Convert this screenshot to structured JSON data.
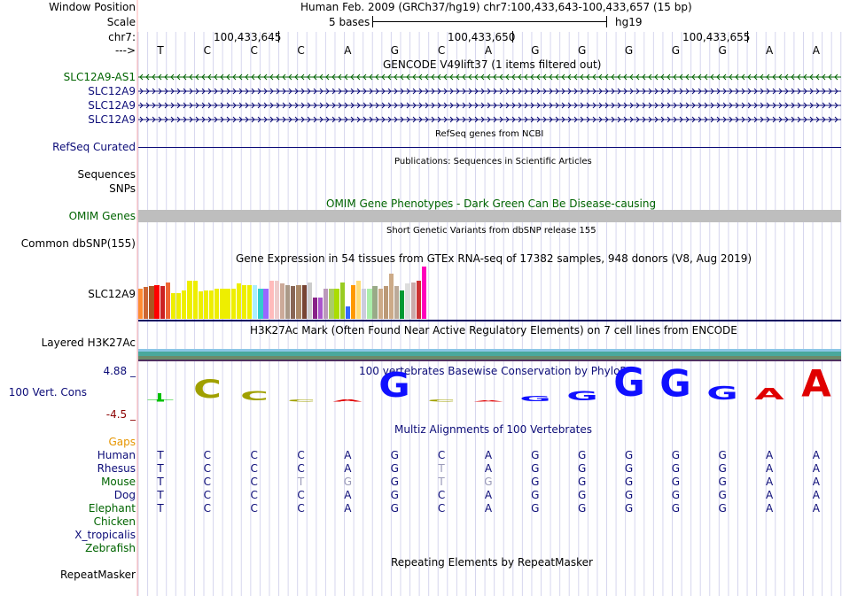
{
  "header": {
    "window_position_label": "Window Position",
    "window_position_text": "Human Feb. 2009 (GRCh37/hg19)   chr7:100,433,643-100,433,657 (15 bp)",
    "scale_label": "Scale",
    "scale_text": "5 bases",
    "assembly": "hg19",
    "chrom_label": "chr7:",
    "coord_ticks": [
      "100,433,645",
      "100,433,650",
      "100,433,655"
    ],
    "strand_label": "--->"
  },
  "bases": [
    "T",
    "C",
    "C",
    "C",
    "A",
    "G",
    "C",
    "A",
    "G",
    "G",
    "G",
    "G",
    "G",
    "A",
    "A"
  ],
  "gencode": {
    "title": "GENCODE V49lift37 (1 items filtered out)",
    "tracks": [
      {
        "name": "SLC12A9-AS1",
        "strand": "-",
        "color": "#006400"
      },
      {
        "name": "SLC12A9",
        "strand": "+",
        "color": "#0c0c78"
      },
      {
        "name": "SLC12A9",
        "strand": "+",
        "color": "#0c0c78"
      },
      {
        "name": "SLC12A9",
        "strand": "+",
        "color": "#0c0c78"
      }
    ]
  },
  "refseq": {
    "title": "RefSeq genes from NCBI",
    "label": "RefSeq Curated",
    "color": "#0c0c78"
  },
  "publications": {
    "title": "Publications: Sequences in Scientific Articles",
    "labels": [
      "Sequences",
      "SNPs"
    ]
  },
  "omim": {
    "title": "OMIM Gene Phenotypes - Dark Green Can Be Disease-causing",
    "label": "OMIM Genes",
    "color": "#006400",
    "bar_color": "#bebebe"
  },
  "dbsnp": {
    "title": "Short Genetic Variants from dbSNP release 155",
    "label": "Common dbSNP(155)"
  },
  "gtex": {
    "title": "Gene Expression in 54 tissues from GTEx RNA-seq of 17382 samples, 948 donors (V8, Aug 2019)",
    "gene": "SLC12A9",
    "bars": [
      {
        "v": 0.56,
        "c": "#FF8C32"
      },
      {
        "v": 0.6,
        "c": "#CC6633"
      },
      {
        "v": 0.62,
        "c": "#AA5522"
      },
      {
        "v": 0.64,
        "c": "#FF0000"
      },
      {
        "v": 0.62,
        "c": "#CC2222"
      },
      {
        "v": 0.69,
        "c": "#EE6633"
      },
      {
        "v": 0.49,
        "c": "#EEEE00"
      },
      {
        "v": 0.49,
        "c": "#EEEE00"
      },
      {
        "v": 0.53,
        "c": "#EEEE00"
      },
      {
        "v": 0.71,
        "c": "#EEEE00"
      },
      {
        "v": 0.71,
        "c": "#EEEE00"
      },
      {
        "v": 0.51,
        "c": "#EEEE00"
      },
      {
        "v": 0.53,
        "c": "#EEEE00"
      },
      {
        "v": 0.53,
        "c": "#EEEE00"
      },
      {
        "v": 0.56,
        "c": "#EEEE00"
      },
      {
        "v": 0.56,
        "c": "#EEEE00"
      },
      {
        "v": 0.56,
        "c": "#EEEE00"
      },
      {
        "v": 0.56,
        "c": "#EEEE00"
      },
      {
        "v": 0.66,
        "c": "#EEEE00"
      },
      {
        "v": 0.64,
        "c": "#EEEE00"
      },
      {
        "v": 0.64,
        "c": "#EEEE00"
      },
      {
        "v": 0.64,
        "c": "#AAEEFF"
      },
      {
        "v": 0.56,
        "c": "#33CCCC"
      },
      {
        "v": 0.56,
        "c": "#9966FF"
      },
      {
        "v": 0.71,
        "c": "#FFBBBB"
      },
      {
        "v": 0.71,
        "c": "#EECCCC"
      },
      {
        "v": 0.66,
        "c": "#CCAA99"
      },
      {
        "v": 0.64,
        "c": "#AA9988"
      },
      {
        "v": 0.62,
        "c": "#886655"
      },
      {
        "v": 0.64,
        "c": "#AA8866"
      },
      {
        "v": 0.64,
        "c": "#774433"
      },
      {
        "v": 0.69,
        "c": "#CCCCCC"
      },
      {
        "v": 0.4,
        "c": "#882288"
      },
      {
        "v": 0.4,
        "c": "#AA55CC"
      },
      {
        "v": 0.56,
        "c": "#BB99BB"
      },
      {
        "v": 0.56,
        "c": "#AACC66"
      },
      {
        "v": 0.56,
        "c": "#AADD00"
      },
      {
        "v": 0.69,
        "c": "#99CC22"
      },
      {
        "v": 0.24,
        "c": "#3366FF"
      },
      {
        "v": 0.64,
        "c": "#FF9900"
      },
      {
        "v": 0.71,
        "c": "#FFDD77"
      },
      {
        "v": 0.56,
        "c": "#CCCCDD"
      },
      {
        "v": 0.56,
        "c": "#AAEEAA"
      },
      {
        "v": 0.62,
        "c": "#99AA88"
      },
      {
        "v": 0.56,
        "c": "#CCAA88"
      },
      {
        "v": 0.62,
        "c": "#BB9977"
      },
      {
        "v": 0.85,
        "c": "#CCAA88"
      },
      {
        "v": 0.62,
        "c": "#BBAA99"
      },
      {
        "v": 0.53,
        "c": "#009933"
      },
      {
        "v": 0.67,
        "c": "#DDDDDD"
      },
      {
        "v": 0.69,
        "c": "#CCAAAA"
      },
      {
        "v": 0.71,
        "c": "#CC3333"
      },
      {
        "v": 0.98,
        "c": "#FF00BB"
      }
    ]
  },
  "h3k27ac": {
    "title": "H3K27Ac Mark (Often Found Near Active Regulatory Elements) on 7 cell lines from ENCODE",
    "label": "Layered H3K27Ac"
  },
  "phylop": {
    "title": "100 vertebrates Basewise Conservation by PhyloP",
    "label": "100 Vert. Cons",
    "max": "4.88 _",
    "min": "-4.5 _",
    "scores": [
      {
        "base": "T",
        "v": 0.1,
        "c": "#00c000"
      },
      {
        "base": "C",
        "v": 0.9,
        "c": "#a0a000"
      },
      {
        "base": "C",
        "v": 0.45,
        "c": "#a0a000"
      },
      {
        "base": "C",
        "v": 0.1,
        "c": "#a0a000"
      },
      {
        "base": "A",
        "v": 0.1,
        "c": "#e00000"
      },
      {
        "base": "G",
        "v": 1.2,
        "c": "#1010ff"
      },
      {
        "base": "C",
        "v": 0.1,
        "c": "#a0a000"
      },
      {
        "base": "A",
        "v": 0.05,
        "c": "#e00000"
      },
      {
        "base": "G",
        "v": 0.25,
        "c": "#1010ff"
      },
      {
        "base": "G",
        "v": 0.45,
        "c": "#1010ff"
      },
      {
        "base": "G",
        "v": 1.4,
        "c": "#1010ff"
      },
      {
        "base": "G",
        "v": 1.3,
        "c": "#1010ff"
      },
      {
        "base": "G",
        "v": 0.65,
        "c": "#1010ff"
      },
      {
        "base": "A",
        "v": 0.55,
        "c": "#e00000"
      },
      {
        "base": "A",
        "v": 1.3,
        "c": "#e00000"
      }
    ]
  },
  "multiz": {
    "title": "Multiz Alignments of 100 Vertebrates",
    "gaps_label": "Gaps",
    "species": [
      {
        "name": "Human",
        "color": "#0c0c78",
        "seq": [
          "T",
          "C",
          "C",
          "C",
          "A",
          "G",
          "C",
          "A",
          "G",
          "G",
          "G",
          "G",
          "G",
          "A",
          "A"
        ],
        "light": []
      },
      {
        "name": "Rhesus",
        "color": "#0c0c78",
        "seq": [
          "T",
          "C",
          "C",
          "C",
          "A",
          "G",
          "T",
          "A",
          "G",
          "G",
          "G",
          "G",
          "G",
          "A",
          "A"
        ],
        "light": [
          6
        ]
      },
      {
        "name": "Mouse",
        "color": "#006400",
        "seq": [
          "T",
          "C",
          "C",
          "T",
          "G",
          "G",
          "T",
          "G",
          "G",
          "G",
          "G",
          "G",
          "G",
          "A",
          "A"
        ],
        "light": [
          3,
          4,
          6,
          7
        ]
      },
      {
        "name": "Dog",
        "color": "#0c0c78",
        "seq": [
          "T",
          "C",
          "C",
          "C",
          "A",
          "G",
          "C",
          "A",
          "G",
          "G",
          "G",
          "G",
          "G",
          "A",
          "A"
        ],
        "light": []
      },
      {
        "name": "Elephant",
        "color": "#006400",
        "seq": [
          "T",
          "C",
          "C",
          "C",
          "A",
          "G",
          "C",
          "A",
          "G",
          "G",
          "G",
          "G",
          "G",
          "A",
          "A"
        ],
        "light": []
      },
      {
        "name": "Chicken",
        "color": "#006400",
        "seq": [],
        "light": []
      },
      {
        "name": "X_tropicalis",
        "color": "#0c0c78",
        "seq": [],
        "light": []
      },
      {
        "name": "Zebrafish",
        "color": "#006400",
        "seq": [],
        "light": []
      }
    ]
  },
  "repeatmasker": {
    "title": "Repeating Elements by RepeatMasker",
    "label": "RepeatMasker"
  }
}
